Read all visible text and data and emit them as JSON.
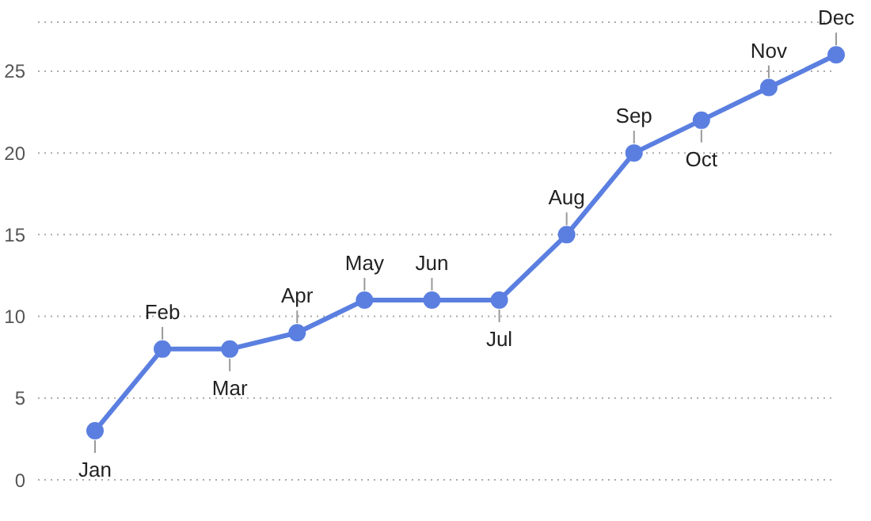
{
  "chart_data": {
    "type": "line",
    "categories": [
      "Jan",
      "Feb",
      "Mar",
      "Apr",
      "May",
      "Jun",
      "Jul",
      "Aug",
      "Sep",
      "Oct",
      "Nov",
      "Dec"
    ],
    "series": [
      {
        "color": "#5b7fe0",
        "values": [
          3,
          8,
          8,
          9,
          11,
          11,
          11,
          15,
          20,
          22,
          24,
          26
        ]
      }
    ],
    "ylim": [
      0,
      28
    ],
    "yticks": [
      0,
      5,
      10,
      15,
      20,
      25
    ],
    "grid": "y",
    "marker": "circle",
    "line_style": "solid"
  }
}
